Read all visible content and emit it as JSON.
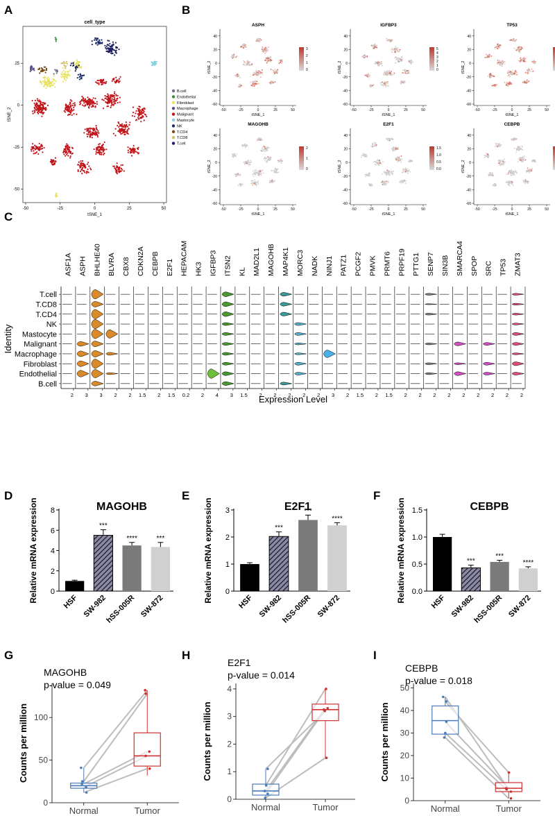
{
  "panel_labels": [
    "A",
    "B",
    "C",
    "D",
    "E",
    "F",
    "G",
    "H",
    "I"
  ],
  "chart_data": [
    {
      "panel": "A",
      "type": "scatter",
      "title": "cell_type",
      "xlabel": "tSNE_1",
      "ylabel": "tSNE_2",
      "xticks": [
        -50,
        -25,
        0,
        25,
        50
      ],
      "yticks": [
        -50,
        -25,
        0,
        25
      ],
      "xlim": [
        -52,
        52
      ],
      "ylim": [
        -58,
        47
      ],
      "legend_position": "right",
      "series": [
        {
          "name": "B.cell",
          "color": "#6e6e8e"
        },
        {
          "name": "Endothelial",
          "color": "#3a8a3a"
        },
        {
          "name": "Fibroblast",
          "color": "#e8e060"
        },
        {
          "name": "Macrophage",
          "color": "#5a4e8c"
        },
        {
          "name": "Malignant",
          "color": "#c0141a"
        },
        {
          "name": "Mastocyte",
          "color": "#7fd0e0"
        },
        {
          "name": "NK",
          "color": "#1a2a6a"
        },
        {
          "name": "T.CD4",
          "color": "#7a4a14"
        },
        {
          "name": "T.CD8",
          "color": "#d0c06a"
        },
        {
          "name": "T.cell",
          "color": "#202060"
        }
      ]
    },
    {
      "panel": "B",
      "type": "scatter",
      "subplots": [
        {
          "title": "ASPH",
          "legend_ticks": [
            "3",
            "2",
            "1",
            "0"
          ]
        },
        {
          "title": "IGFBP3",
          "legend_ticks": [
            "5",
            "4",
            "3",
            "2",
            "1",
            "0"
          ]
        },
        {
          "title": "TP53",
          "legend_ticks": [
            "2.5",
            "2.0",
            "1.5",
            "1.0",
            "0.5",
            "0.0"
          ]
        },
        {
          "title": "MAGOHB",
          "legend_ticks": [
            "2",
            "1",
            "0"
          ]
        },
        {
          "title": "E2F1",
          "legend_ticks": [
            "1.5",
            "1.0",
            "0.5",
            "0.0"
          ]
        },
        {
          "title": "CEBPB",
          "legend_ticks": [
            "2.0",
            "1.5",
            "1.0",
            "0.5",
            "0.0"
          ]
        }
      ],
      "xlabel": "tSNE_1",
      "ylabel": "tSNE_2",
      "xticks": [
        "-50",
        "-25",
        "0",
        "25",
        "50"
      ],
      "yticks": [
        "40",
        "20",
        "0",
        "-20",
        "-40",
        "-60"
      ]
    },
    {
      "panel": "C",
      "type": "violin",
      "xlabel": "Expression Level",
      "ylabel": "Identity",
      "identities": [
        "T.cell",
        "T.CD8",
        "T.CD4",
        "NK",
        "Mastocyte",
        "Malignant",
        "Macrophage",
        "Fibroblast",
        "Endothelial",
        "B.cell"
      ],
      "genes": [
        {
          "name": "ASF1A",
          "tick": "2"
        },
        {
          "name": "ASPH",
          "tick": "3"
        },
        {
          "name": "BHLHE40",
          "tick": "3"
        },
        {
          "name": "BLVRA",
          "tick": "2"
        },
        {
          "name": "CBX8",
          "tick": "2"
        },
        {
          "name": "CDKN2A",
          "tick": "1.5"
        },
        {
          "name": "CEBPB",
          "tick": "2"
        },
        {
          "name": "E2F1",
          "tick": "1.5"
        },
        {
          "name": "HEPACAM",
          "tick": "0.2"
        },
        {
          "name": "HK3",
          "tick": "2"
        },
        {
          "name": "IGFBP3",
          "tick": "4"
        },
        {
          "name": "ITSN2",
          "tick": "3"
        },
        {
          "name": "KL",
          "tick": "1.5"
        },
        {
          "name": "MAD2L1",
          "tick": "2"
        },
        {
          "name": "MAGOHB",
          "tick": "2"
        },
        {
          "name": "MAP4K1",
          "tick": "2"
        },
        {
          "name": "MORC3",
          "tick": "2"
        },
        {
          "name": "NADK",
          "tick": "2"
        },
        {
          "name": "NINJ1",
          "tick": "3"
        },
        {
          "name": "PATZ1",
          "tick": "2"
        },
        {
          "name": "PCGF2",
          "tick": "1.5"
        },
        {
          "name": "PMVK",
          "tick": "2"
        },
        {
          "name": "PRMT6",
          "tick": "1.5"
        },
        {
          "name": "PRPF19",
          "tick": "2"
        },
        {
          "name": "PTTG1",
          "tick": "2"
        },
        {
          "name": "SENP7",
          "tick": "2"
        },
        {
          "name": "SIN3B",
          "tick": "2"
        },
        {
          "name": "SMARCA4",
          "tick": "2"
        },
        {
          "name": "SPOP",
          "tick": "2"
        },
        {
          "name": "SRC",
          "tick": "2"
        },
        {
          "name": "TP53",
          "tick": "2"
        },
        {
          "name": "ZMAT3",
          "tick": "2"
        }
      ],
      "fills": {
        "BHLHE40": "#d98a2a",
        "ASPH": "#d98a2a",
        "BLVRA": "#d98a2a",
        "ITSN2": "#4a9a30",
        "IGFBP3": "#6ec03a",
        "MAP4K1": "#3a9a9a",
        "MORC3": "#5ab0c8",
        "NINJ1": "#4ab0e8",
        "SMARCA4": "#d050c0",
        "SRC": "#d050c0",
        "ZMAT3": "#e0507a"
      }
    },
    {
      "panel": "D",
      "type": "bar",
      "title": "MAGOHB",
      "ylabel": "Relative mRNA expression",
      "categories": [
        "HSF",
        "SW-982",
        "hSS-005R",
        "SW-872"
      ],
      "values": [
        1.0,
        5.5,
        4.5,
        4.35
      ],
      "errors": [
        0.08,
        0.55,
        0.3,
        0.45
      ],
      "significance": [
        "",
        "***",
        "****",
        "***"
      ],
      "ylim": [
        0,
        8
      ],
      "yticks": [
        0,
        2,
        4,
        6,
        8
      ]
    },
    {
      "panel": "E",
      "type": "bar",
      "title": "E2F1",
      "ylabel": "Relative mRNA expression",
      "categories": [
        "HSF",
        "SW-982",
        "hSS-005R",
        "SW-872"
      ],
      "values": [
        1.0,
        2.02,
        2.63,
        2.43
      ],
      "errors": [
        0.05,
        0.17,
        0.18,
        0.1
      ],
      "significance": [
        "",
        "***",
        "***",
        "****"
      ],
      "ylim": [
        0,
        3
      ],
      "yticks": [
        0,
        1,
        2,
        3
      ]
    },
    {
      "panel": "F",
      "type": "bar",
      "title": "CEBPB",
      "ylabel": "Relative mRNA expression",
      "categories": [
        "HSF",
        "SW-982",
        "hSS-005R",
        "SW-872"
      ],
      "values": [
        1.0,
        0.43,
        0.54,
        0.42
      ],
      "errors": [
        0.05,
        0.05,
        0.03,
        0.03
      ],
      "significance": [
        "",
        "***",
        "***",
        "****"
      ],
      "ylim": [
        0,
        1.5
      ],
      "yticks": [
        0.0,
        0.5,
        1.0,
        1.5
      ]
    },
    {
      "panel": "G",
      "type": "box",
      "title": "MAGOHB",
      "subtitle": "p-value = 0.049",
      "ylabel": "Counts per million",
      "categories": [
        "Normal",
        "Tumor"
      ],
      "ylim": [
        0,
        140
      ],
      "yticks": [
        0,
        50,
        100
      ],
      "boxes": [
        {
          "category": "Normal",
          "min": 12,
          "q1": 17,
          "median": 20,
          "q3": 23,
          "max": 41,
          "color": "#4a7ab8"
        },
        {
          "category": "Tumor",
          "min": 32,
          "q1": 43,
          "median": 55,
          "q3": 82,
          "max": 132,
          "color": "#d03030"
        }
      ],
      "pairs": [
        [
          12,
          40
        ],
        [
          18,
          55
        ],
        [
          22,
          60
        ],
        [
          25,
          128
        ],
        [
          41,
          132
        ]
      ]
    },
    {
      "panel": "H",
      "type": "box",
      "title": "E2F1",
      "subtitle": "p-value = 0.014",
      "ylabel": "Counts per million",
      "categories": [
        "Normal",
        "Tumor"
      ],
      "ylim": [
        0,
        4.2
      ],
      "yticks": [
        0,
        1,
        2,
        3,
        4
      ],
      "boxes": [
        {
          "category": "Normal",
          "min": 0.0,
          "q1": 0.15,
          "median": 0.3,
          "q3": 0.55,
          "max": 1.1,
          "color": "#4a7ab8"
        },
        {
          "category": "Tumor",
          "min": 1.5,
          "q1": 2.85,
          "median": 3.25,
          "q3": 3.45,
          "max": 4.0,
          "color": "#d03030"
        }
      ],
      "pairs": [
        [
          0.05,
          1.5
        ],
        [
          0.2,
          3.25
        ],
        [
          0.3,
          3.3
        ],
        [
          0.5,
          4.0
        ],
        [
          1.1,
          3.2
        ]
      ]
    },
    {
      "panel": "I",
      "type": "box",
      "title": "CEBPB",
      "subtitle": "p-value = 0.018",
      "ylabel": "Counts per million",
      "categories": [
        "Normal",
        "Tumor"
      ],
      "ylim": [
        0,
        52
      ],
      "yticks": [
        0,
        10,
        20,
        30,
        40,
        50
      ],
      "boxes": [
        {
          "category": "Normal",
          "min": 28,
          "q1": 29.5,
          "median": 35.5,
          "q3": 42,
          "max": 46,
          "color": "#4a7ab8"
        },
        {
          "category": "Tumor",
          "min": 1,
          "q1": 4,
          "median": 5.5,
          "q3": 8,
          "max": 12.5,
          "color": "#d03030"
        }
      ],
      "pairs": [
        [
          46,
          5
        ],
        [
          44,
          12.5
        ],
        [
          35,
          5.5
        ],
        [
          30,
          4
        ],
        [
          28,
          1
        ]
      ]
    }
  ]
}
